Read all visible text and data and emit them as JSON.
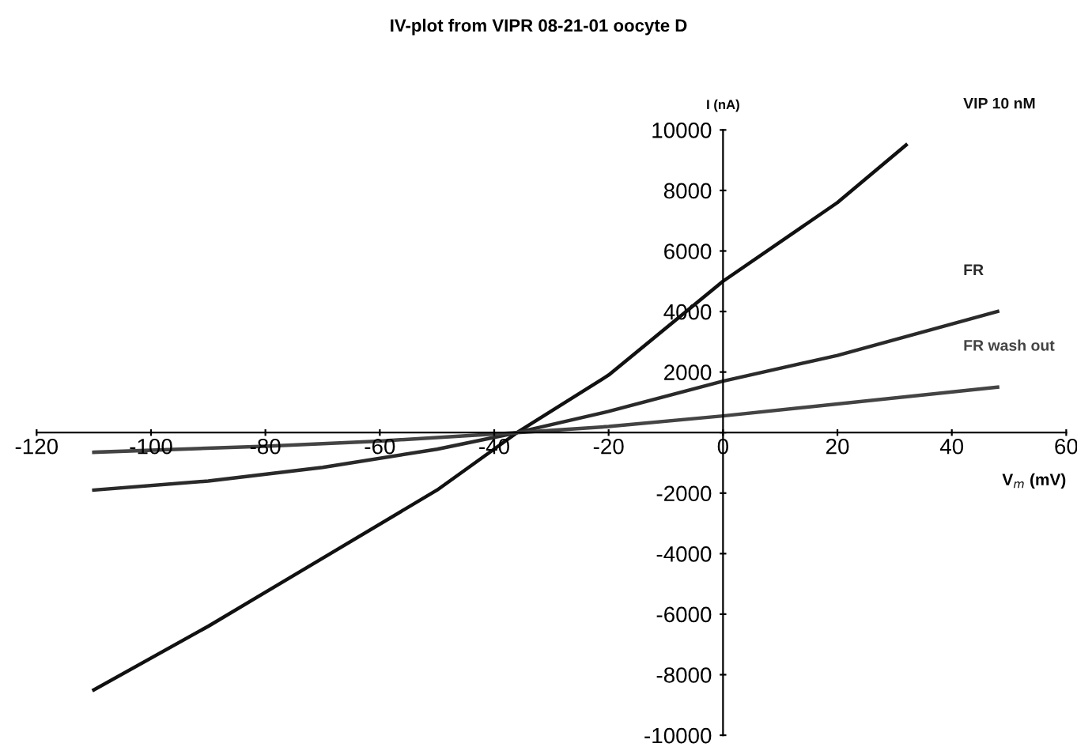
{
  "chart_data": {
    "type": "line",
    "title": "IV-plot from VIPR 08-21-01 oocyte D",
    "xlabel": "V$_{m}$ (mV)",
    "ylabel": "I (nA)",
    "xlim": [
      -120,
      60
    ],
    "ylim": [
      -10000,
      10000
    ],
    "xticks": [
      -120,
      -100,
      -80,
      -60,
      -40,
      -20,
      0,
      20,
      40,
      60
    ],
    "yticks": [
      -10000,
      -8000,
      -6000,
      -4000,
      -2000,
      {
        "value": 0,
        "label": null
      },
      2000,
      4000,
      6000,
      8000,
      10000
    ],
    "grid": false,
    "legend": false,
    "marker": "none",
    "line_style": "solid",
    "series": [
      {
        "name": "VIP 10 nM",
        "color": "#111111",
        "x": [
          -110,
          -90,
          -70,
          -50,
          -36,
          -20,
          0,
          20,
          32
        ],
        "values": [
          -8500,
          -6400,
          -4150,
          -1900,
          0,
          1900,
          5000,
          7600,
          9500
        ]
      },
      {
        "name": "FR",
        "color": "#2a2a2a",
        "x": [
          -110,
          -90,
          -70,
          -50,
          -36,
          -20,
          0,
          20,
          48
        ],
        "values": [
          -1900,
          -1600,
          -1150,
          -550,
          0,
          700,
          1700,
          2550,
          4000
        ]
      },
      {
        "name": "FR wash out",
        "color": "#444444",
        "x": [
          -110,
          -80,
          -60,
          -36,
          -20,
          0,
          48
        ],
        "values": [
          -650,
          -450,
          -280,
          0,
          200,
          550,
          1500
        ]
      }
    ]
  }
}
